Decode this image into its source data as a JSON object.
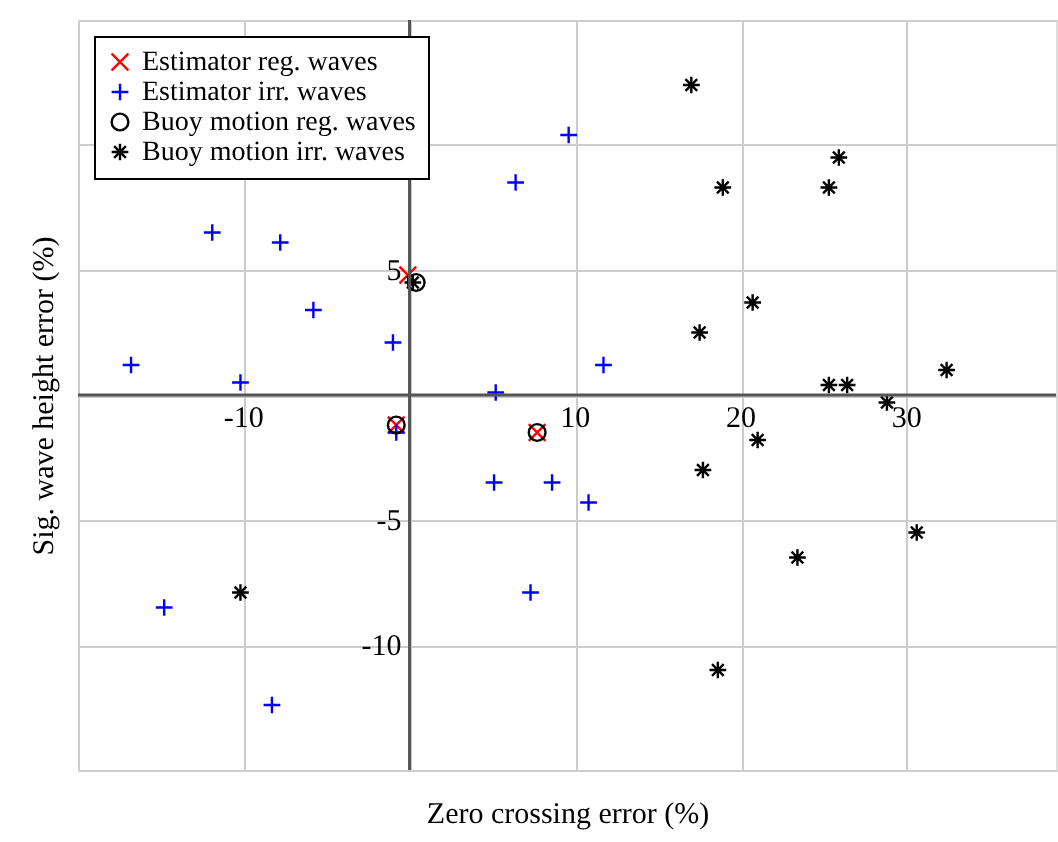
{
  "chart_data": {
    "type": "scatter",
    "xlabel": "Zero crossing error (%)",
    "ylabel": "Sig. wave height error (%)",
    "xlim": [
      -20,
      39
    ],
    "ylim": [
      -15,
      15
    ],
    "xticks": [
      {
        "value": -20,
        "label": null
      },
      -10,
      {
        "value": 0,
        "label": null
      },
      10,
      20,
      30
    ],
    "yticks": [
      {
        "value": -15,
        "label": null
      },
      -10,
      -5,
      {
        "value": 0,
        "label": null
      },
      5,
      {
        "value": 10,
        "label": null
      },
      {
        "value": 15,
        "label": null
      }
    ],
    "grid": true,
    "legend": "top left",
    "series": [
      {
        "name": "Estimator reg. waves",
        "color": "#ff0000",
        "marker": "cross",
        "x": [
          -0.1,
          -0.8,
          7.7
        ],
        "values": [
          4.8,
          -1.2,
          -1.5
        ]
      },
      {
        "name": "Estimator irr. waves",
        "color": "#0000ff",
        "marker": "plus",
        "x": [
          9.6,
          6.4,
          -11.9,
          -7.8,
          -5.8,
          -1.0,
          -16.8,
          -10.2,
          5.2,
          11.7,
          -0.8,
          5.1,
          8.6,
          7.3,
          -14.8,
          -8.3,
          10.8
        ],
        "values": [
          10.4,
          8.5,
          6.5,
          6.1,
          3.4,
          2.1,
          1.2,
          0.5,
          0.1,
          1.2,
          -1.5,
          -3.5,
          -3.5,
          -7.9,
          -8.5,
          -12.4,
          -4.3
        ]
      },
      {
        "name": "Buoy motion reg. waves",
        "color": "#000000",
        "marker": "circle",
        "x": [
          0.4,
          -0.8,
          7.7
        ],
        "values": [
          4.5,
          -1.2,
          -1.5
        ]
      },
      {
        "name": "Buoy motion irr. waves",
        "color": "#000000",
        "x": [
          0.2,
          17.0,
          25.9,
          18.9,
          25.3,
          20.7,
          17.5,
          32.4,
          25.3,
          26.4,
          28.8,
          21.0,
          17.7,
          23.4,
          30.6,
          18.6,
          -10.2
        ],
        "values": [
          4.5,
          12.4,
          9.5,
          8.3,
          8.3,
          3.7,
          2.5,
          1.0,
          0.4,
          0.4,
          -0.3,
          -1.8,
          -3.0,
          -6.5,
          -5.5,
          -11.0,
          -7.9
        ]
      }
    ]
  }
}
